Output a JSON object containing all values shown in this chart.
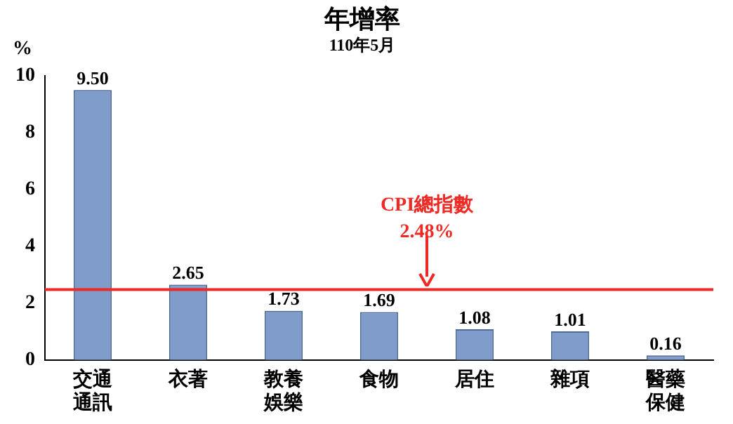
{
  "chart_data": {
    "type": "bar",
    "title": "年增率",
    "subtitle": "110年5月",
    "ylabel": "%",
    "categories": [
      "交通通訊",
      "衣著",
      "教養娛樂",
      "食物",
      "居住",
      "雜項",
      "醫藥保健"
    ],
    "values": [
      9.5,
      2.65,
      1.73,
      1.69,
      1.08,
      1.01,
      0.16
    ],
    "value_labels": [
      "9.50",
      "2.65",
      "1.73",
      "1.69",
      "1.08",
      "1.01",
      "0.16"
    ],
    "color": "#809ccb",
    "ylim": [
      0,
      10
    ],
    "yticks": [
      0,
      2,
      4,
      6,
      8,
      10
    ],
    "grid": false,
    "legend": false,
    "ref_lines": [
      {
        "axis": "y",
        "value": 2.48,
        "label": "CPI總指數\n2.48%",
        "color": "#ee2a24"
      }
    ]
  }
}
